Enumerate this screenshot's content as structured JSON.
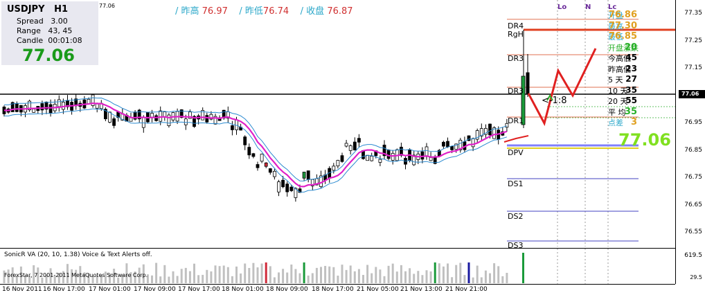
{
  "info": {
    "symbol": "USDJPY",
    "timeframe": "H1",
    "spread_label": "Spread",
    "spread": "3.00",
    "range_label": "Range",
    "range": "43, 45",
    "candle_label": "Candle",
    "candle": "00:01:08",
    "price": "77.06",
    "small_price": "77.06"
  },
  "header": {
    "high_label": "/ 昨高",
    "high": "76.97",
    "low_label": "/ 昨低",
    "low": "76.74",
    "close_label": "/ 收盘",
    "close": "76.87"
  },
  "markers": {
    "lo": "Lo",
    "n": "N",
    "lc": "Lc"
  },
  "levels": {
    "dr4": "DR4",
    "rgh": "RgH",
    "dr3a": "DR3",
    "dr3b": "DR3",
    "dr1": "DR1",
    "dpv": "DPV",
    "ds1": "DS1",
    "ds2": "DS2",
    "ds3": "DS3",
    "ratio": "<-1:8"
  },
  "panel": {
    "rows": [
      {
        "label": "开盘",
        "value": "76.86",
        "label_color": "#2aa7c9",
        "value_color": "#e0a020"
      },
      {
        "label": "最高",
        "value": "77.30",
        "label_color": "#2aa7c9",
        "value_color": "#e0a020"
      },
      {
        "label": "最低",
        "value": "76.85",
        "label_color": "#2aa7c9",
        "value_color": "#e0a020"
      },
      {
        "label": "开盘涨跌",
        "value": "20",
        "label_color": "#2ab02a",
        "value_color": "#2ab02a"
      },
      {
        "label": "今高低",
        "value": "45",
        "label_color": "#000000",
        "value_color": "#000000"
      },
      {
        "label": "昨高低",
        "value": "23",
        "label_color": "#000000",
        "value_color": "#000000"
      },
      {
        "label": "5  天",
        "value": "27",
        "label_color": "#000000",
        "value_color": "#000000"
      },
      {
        "label": "10 天",
        "value": "35",
        "label_color": "#000000",
        "value_color": "#000000"
      },
      {
        "label": "20 天",
        "value": "55",
        "label_color": "#000000",
        "value_color": "#000000"
      },
      {
        "label": "平  均",
        "value": "35",
        "label_color": "#000000",
        "value_color": "#2ab02a"
      },
      {
        "label": "点差",
        "value": "3",
        "label_color": "#2aa7c9",
        "value_color": "#e0a020"
      }
    ],
    "big_price": "77.06"
  },
  "indicator": {
    "label": "SonicR VA  (20, 10, 1.38)   Voice & Text Alerts off.",
    "copyright": "ForexStar, 7 2001-2011 MetaQuotes Software Corp.",
    "axis_top": "619.5",
    "axis_bottom": "29.5"
  },
  "price_axis": {
    "ticks": [
      "77.35",
      "77.25",
      "77.15",
      "77.06",
      "76.95",
      "76.85",
      "76.75",
      "76.65",
      "76.55"
    ],
    "current": "77.06"
  },
  "time_axis": {
    "ticks": [
      "16 Nov 2011",
      "16 Nov 17:00",
      "17 Nov 01:00",
      "17 Nov 09:00",
      "17 Nov 17:00",
      "18 Nov 01:00",
      "18 Nov 09:00",
      "18 Nov 17:00",
      "21 Nov 05:00",
      "21 Nov 13:00",
      "21 Nov 21:00"
    ]
  },
  "colors": {
    "bull": "#1a9a3a",
    "bear": "#d02a3a",
    "ma_magenta": "#e020c8",
    "ma_blue": "#2a8ad0",
    "level_line": "#e07050",
    "support_line": "#4040c0",
    "zigzag": "#e02020"
  },
  "chart_data": {
    "type": "candlestick",
    "ylim": [
      76.5,
      77.4
    ],
    "current_price": 77.06,
    "levels": {
      "dr4": 77.33,
      "rgh": 77.3,
      "dr3": 77.2,
      "dr2": 77.06,
      "dr1": 76.98,
      "dpv": 76.88,
      "ds1": 76.75,
      "ds2": 76.63,
      "ds3": 76.53
    }
  }
}
